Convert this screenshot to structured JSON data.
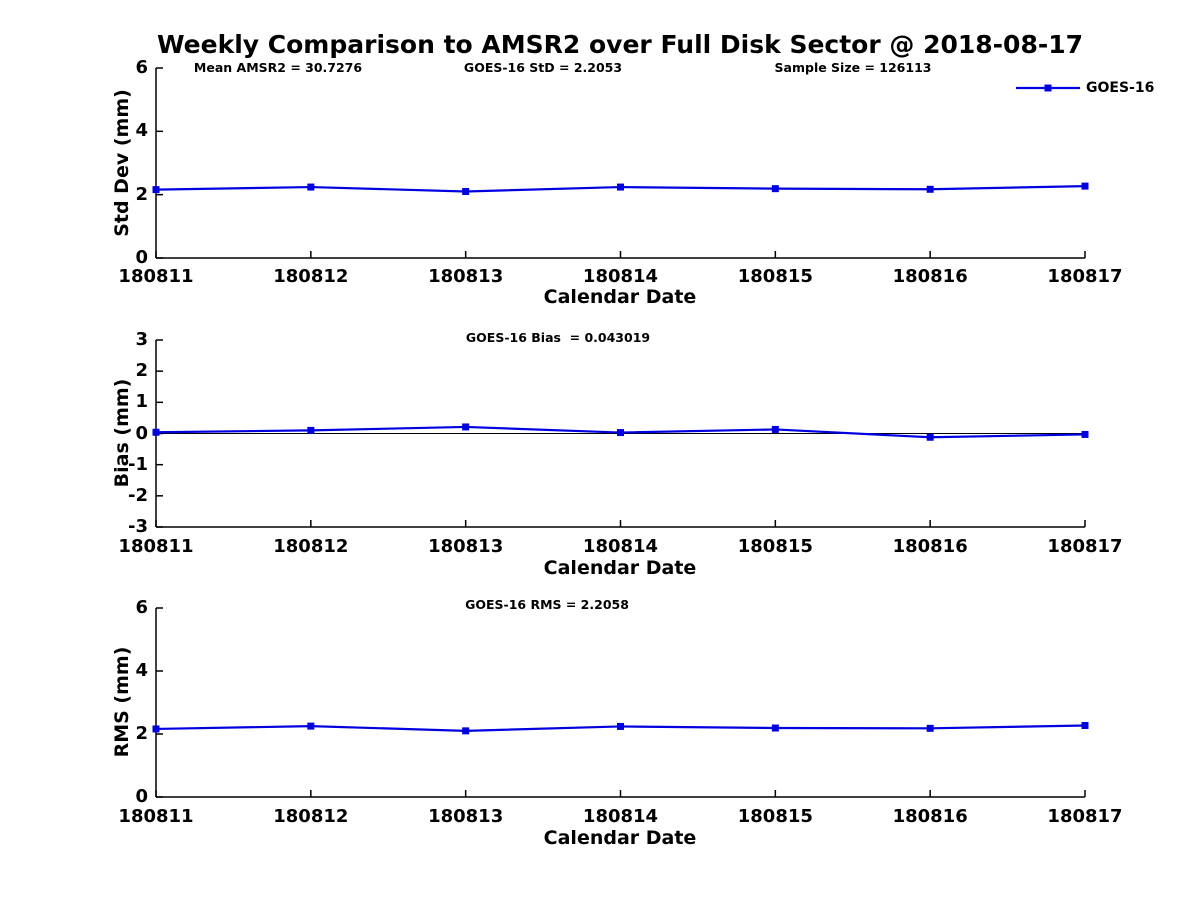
{
  "figure_title": "Weekly Comparison to AMSR2 over Full Disk Sector @ 2018-08-17",
  "legend": {
    "label": "GOES-16"
  },
  "colors": {
    "line": "#0000e0",
    "axis": "#000000",
    "zero_line": "#000000",
    "text": "#000000",
    "background": "#ffffff"
  },
  "chart_data": [
    {
      "type": "line",
      "panel": "std-dev",
      "annotations": [
        "Mean AMSR2 = 30.7276",
        "GOES-16 StD = 2.2053",
        "Sample Size = 126113"
      ],
      "categories": [
        "180811",
        "180812",
        "180813",
        "180814",
        "180815",
        "180816",
        "180817"
      ],
      "series": [
        {
          "name": "GOES-16",
          "values": [
            2.16,
            2.24,
            2.1,
            2.24,
            2.19,
            2.17,
            2.27
          ]
        }
      ],
      "xlabel": "Calendar Date",
      "ylabel": "Std Dev (mm)",
      "ylim": [
        0,
        6
      ],
      "yticks": [
        0,
        2,
        4,
        6
      ],
      "zero_line": false,
      "grid": false,
      "legend_position": "top-right-outside-axes"
    },
    {
      "type": "line",
      "panel": "bias",
      "annotations": [
        "GOES-16 Bias  = 0.043019"
      ],
      "categories": [
        "180811",
        "180812",
        "180813",
        "180814",
        "180815",
        "180816",
        "180817"
      ],
      "series": [
        {
          "name": "GOES-16",
          "values": [
            0.04,
            0.1,
            0.21,
            0.03,
            0.13,
            -0.12,
            -0.03
          ]
        }
      ],
      "xlabel": "Calendar Date",
      "ylabel": "Bias (mm)",
      "ylim": [
        -3,
        3
      ],
      "yticks": [
        -3,
        -2,
        -1,
        0,
        1,
        2,
        3
      ],
      "zero_line": true,
      "grid": false
    },
    {
      "type": "line",
      "panel": "rms",
      "annotations": [
        "GOES-16 RMS = 2.2058"
      ],
      "categories": [
        "180811",
        "180812",
        "180813",
        "180814",
        "180815",
        "180816",
        "180817"
      ],
      "series": [
        {
          "name": "GOES-16",
          "values": [
            2.16,
            2.25,
            2.1,
            2.24,
            2.19,
            2.18,
            2.27
          ]
        }
      ],
      "xlabel": "Calendar Date",
      "ylabel": "RMS (mm)",
      "ylim": [
        0,
        6
      ],
      "yticks": [
        0,
        2,
        4,
        6
      ],
      "zero_line": false,
      "grid": false
    }
  ]
}
